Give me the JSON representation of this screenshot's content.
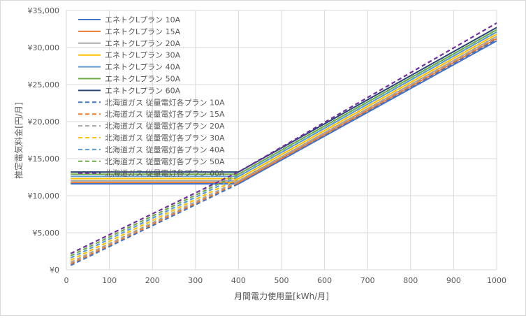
{
  "chart_data": {
    "type": "line",
    "title": "",
    "xlabel": "月間電力使用量[kWh/月]",
    "ylabel": "推定電気料金[円/月]",
    "xlim": [
      0,
      1000
    ],
    "ylim": [
      0,
      35000
    ],
    "x_ticks": [
      "0",
      "100",
      "200",
      "300",
      "400",
      "500",
      "600",
      "700",
      "800",
      "900",
      "1000"
    ],
    "y_ticks": [
      "¥0",
      "¥5,000",
      "¥10,000",
      "¥15,000",
      "¥20,000",
      "¥25,000",
      "¥30,000",
      "¥35,000"
    ],
    "grid": true,
    "legend_position": "top-left",
    "x": [
      10,
      400,
      1000
    ],
    "series": [
      {
        "name": "エネトクLプラン 10A",
        "color": "#4472C4",
        "dash": false,
        "values": [
          11600,
          11600,
          30900
        ]
      },
      {
        "name": "エネトクLプラン 15A",
        "color": "#ED7D31",
        "dash": false,
        "values": [
          11800,
          11800,
          31200
        ]
      },
      {
        "name": "エネトクLプラン 20A",
        "color": "#A5A5A5",
        "dash": false,
        "values": [
          12000,
          12000,
          31500
        ]
      },
      {
        "name": "エネトクLプラン 30A",
        "color": "#FFC000",
        "dash": false,
        "values": [
          12300,
          12300,
          31800
        ]
      },
      {
        "name": "エネトクLプラン 40A",
        "color": "#5B9BD5",
        "dash": false,
        "values": [
          12600,
          12600,
          32100
        ]
      },
      {
        "name": "エネトクLプラン 50A",
        "color": "#70AD47",
        "dash": false,
        "values": [
          12900,
          12900,
          32400
        ]
      },
      {
        "name": "エネトクLプラン 60A",
        "color": "#264478",
        "dash": false,
        "values": [
          13200,
          13200,
          32700
        ]
      },
      {
        "name": "北海道ガス 従量電灯各プラン 10A",
        "color": "#4472C4",
        "dash": true,
        "values": [
          600,
          11600,
          31100
        ]
      },
      {
        "name": "北海道ガス 従量電灯各プラン 15A",
        "color": "#ED7D31",
        "dash": true,
        "values": [
          800,
          11800,
          31300
        ]
      },
      {
        "name": "北海道ガス 従量電灯各プラン 20A",
        "color": "#A5A5A5",
        "dash": true,
        "values": [
          1000,
          12000,
          31500
        ]
      },
      {
        "name": "北海道ガス 従量電灯各プラン 30A",
        "color": "#FFC000",
        "dash": true,
        "values": [
          1300,
          12300,
          31800
        ]
      },
      {
        "name": "北海道ガス 従量電灯各プラン 40A",
        "color": "#5B9BD5",
        "dash": true,
        "values": [
          1600,
          12600,
          32100
        ]
      },
      {
        "name": "北海道ガス 従量電灯各プラン 50A",
        "color": "#70AD47",
        "dash": true,
        "values": [
          1900,
          12900,
          32400
        ]
      },
      {
        "name": "北海道ガス 従量電灯各プラン 60A",
        "color": "#7030A0",
        "dash": true,
        "values": [
          2200,
          13200,
          33300
        ]
      }
    ]
  }
}
